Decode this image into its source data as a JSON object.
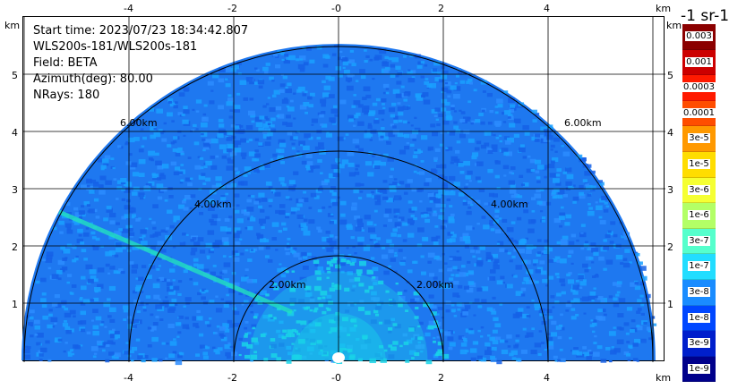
{
  "info": {
    "start_time": "Start time: 2023/07/23 18:34:42.807",
    "instrument": "WLS200s-181/WLS200s-181",
    "field": "Field: BETA",
    "azimuth": "Azimuth(deg): 80.00",
    "nrays": "NRays: 180"
  },
  "axes": {
    "x_ticks": [
      "-4",
      "-2",
      "-0",
      "2",
      "4"
    ],
    "y_ticks": [
      "5",
      "4",
      "3",
      "2",
      "1"
    ],
    "unit": "km"
  },
  "range_rings": [
    "2.00km",
    "4.00km",
    "6.00km"
  ],
  "colorbar": {
    "units": "-1 sr-1",
    "labels": [
      "0.003",
      "0.001",
      "0.0003",
      "0.0001",
      "3e-5",
      "1e-5",
      "3e-6",
      "1e-6",
      "3e-7",
      "1e-7",
      "3e-8",
      "1e-8",
      "3e-9",
      "1e-9"
    ],
    "colors": [
      "#8b0000",
      "#cc0000",
      "#ff1a00",
      "#ff4d00",
      "#ff9900",
      "#ffdd00",
      "#f5ff33",
      "#b3ff66",
      "#55ffcc",
      "#22ddff",
      "#1a8cff",
      "#0047ff",
      "#001fcc",
      "#00008b"
    ]
  },
  "colors": {
    "field_base": "#1e78f0",
    "field_light": "#1aa0ff",
    "field_dark": "#1560e6",
    "field_near": "#19d3e8",
    "beam": "#22e0c0"
  }
}
